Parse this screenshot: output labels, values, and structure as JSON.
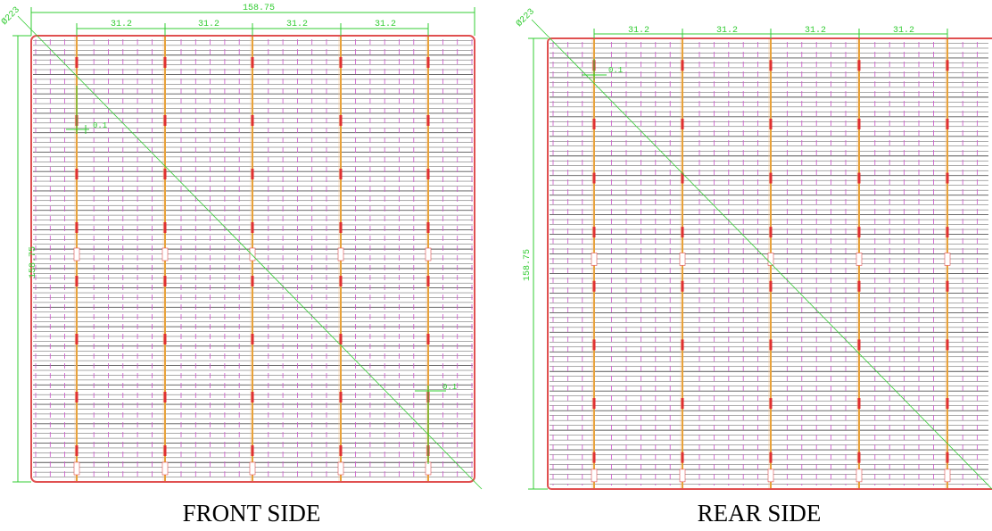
{
  "front": {
    "caption": "FRONT SIDE",
    "dimensions": {
      "overall_width": "158.75",
      "overall_height": "158.75",
      "busbar_pitch": [
        "31.2",
        "31.2",
        "31.2",
        "31.2"
      ],
      "corner_diameter": "Ø223",
      "detail_label_top": "0.1",
      "detail_label_bottom": "0.1"
    }
  },
  "rear": {
    "caption": "REAR SIDE",
    "dimensions": {
      "overall_height": "158.75",
      "busbar_pitch": [
        "31.2",
        "31.2",
        "31.2",
        "31.2"
      ],
      "corner_diameter": "Ø223",
      "detail_label_top": "0.1"
    }
  },
  "colors": {
    "dimension": "#33cc33",
    "outline": "#e05050",
    "busbar": "#e8a23a",
    "pad": "#e03030",
    "finger_dash": "#cc55cc",
    "grid_line": "#555555"
  }
}
